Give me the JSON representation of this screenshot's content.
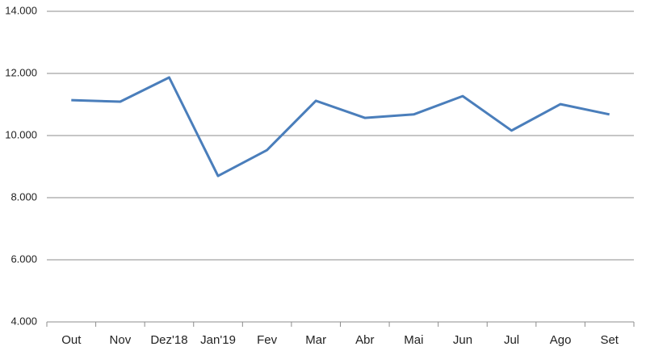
{
  "chart_data": {
    "type": "line",
    "categories": [
      "Out",
      "Nov",
      "Dez'18",
      "Jan'19",
      "Fev",
      "Mar",
      "Abr",
      "Mai",
      "Jun",
      "Jul",
      "Ago",
      "Set"
    ],
    "values": [
      11140,
      11090,
      11870,
      8700,
      9530,
      11120,
      10570,
      10680,
      11270,
      10160,
      11010,
      10680
    ],
    "color": "#4a7ebb",
    "ylim": [
      4000,
      14000
    ],
    "yticks": [
      {
        "value": 4000,
        "label": "4.000"
      },
      {
        "value": 6000,
        "label": "6.000"
      },
      {
        "value": 8000,
        "label": "8.000"
      },
      {
        "value": 10000,
        "label": "10.000"
      },
      {
        "value": 12000,
        "label": "12.000"
      },
      {
        "value": 14000,
        "label": "14.000"
      }
    ],
    "grid": true
  }
}
